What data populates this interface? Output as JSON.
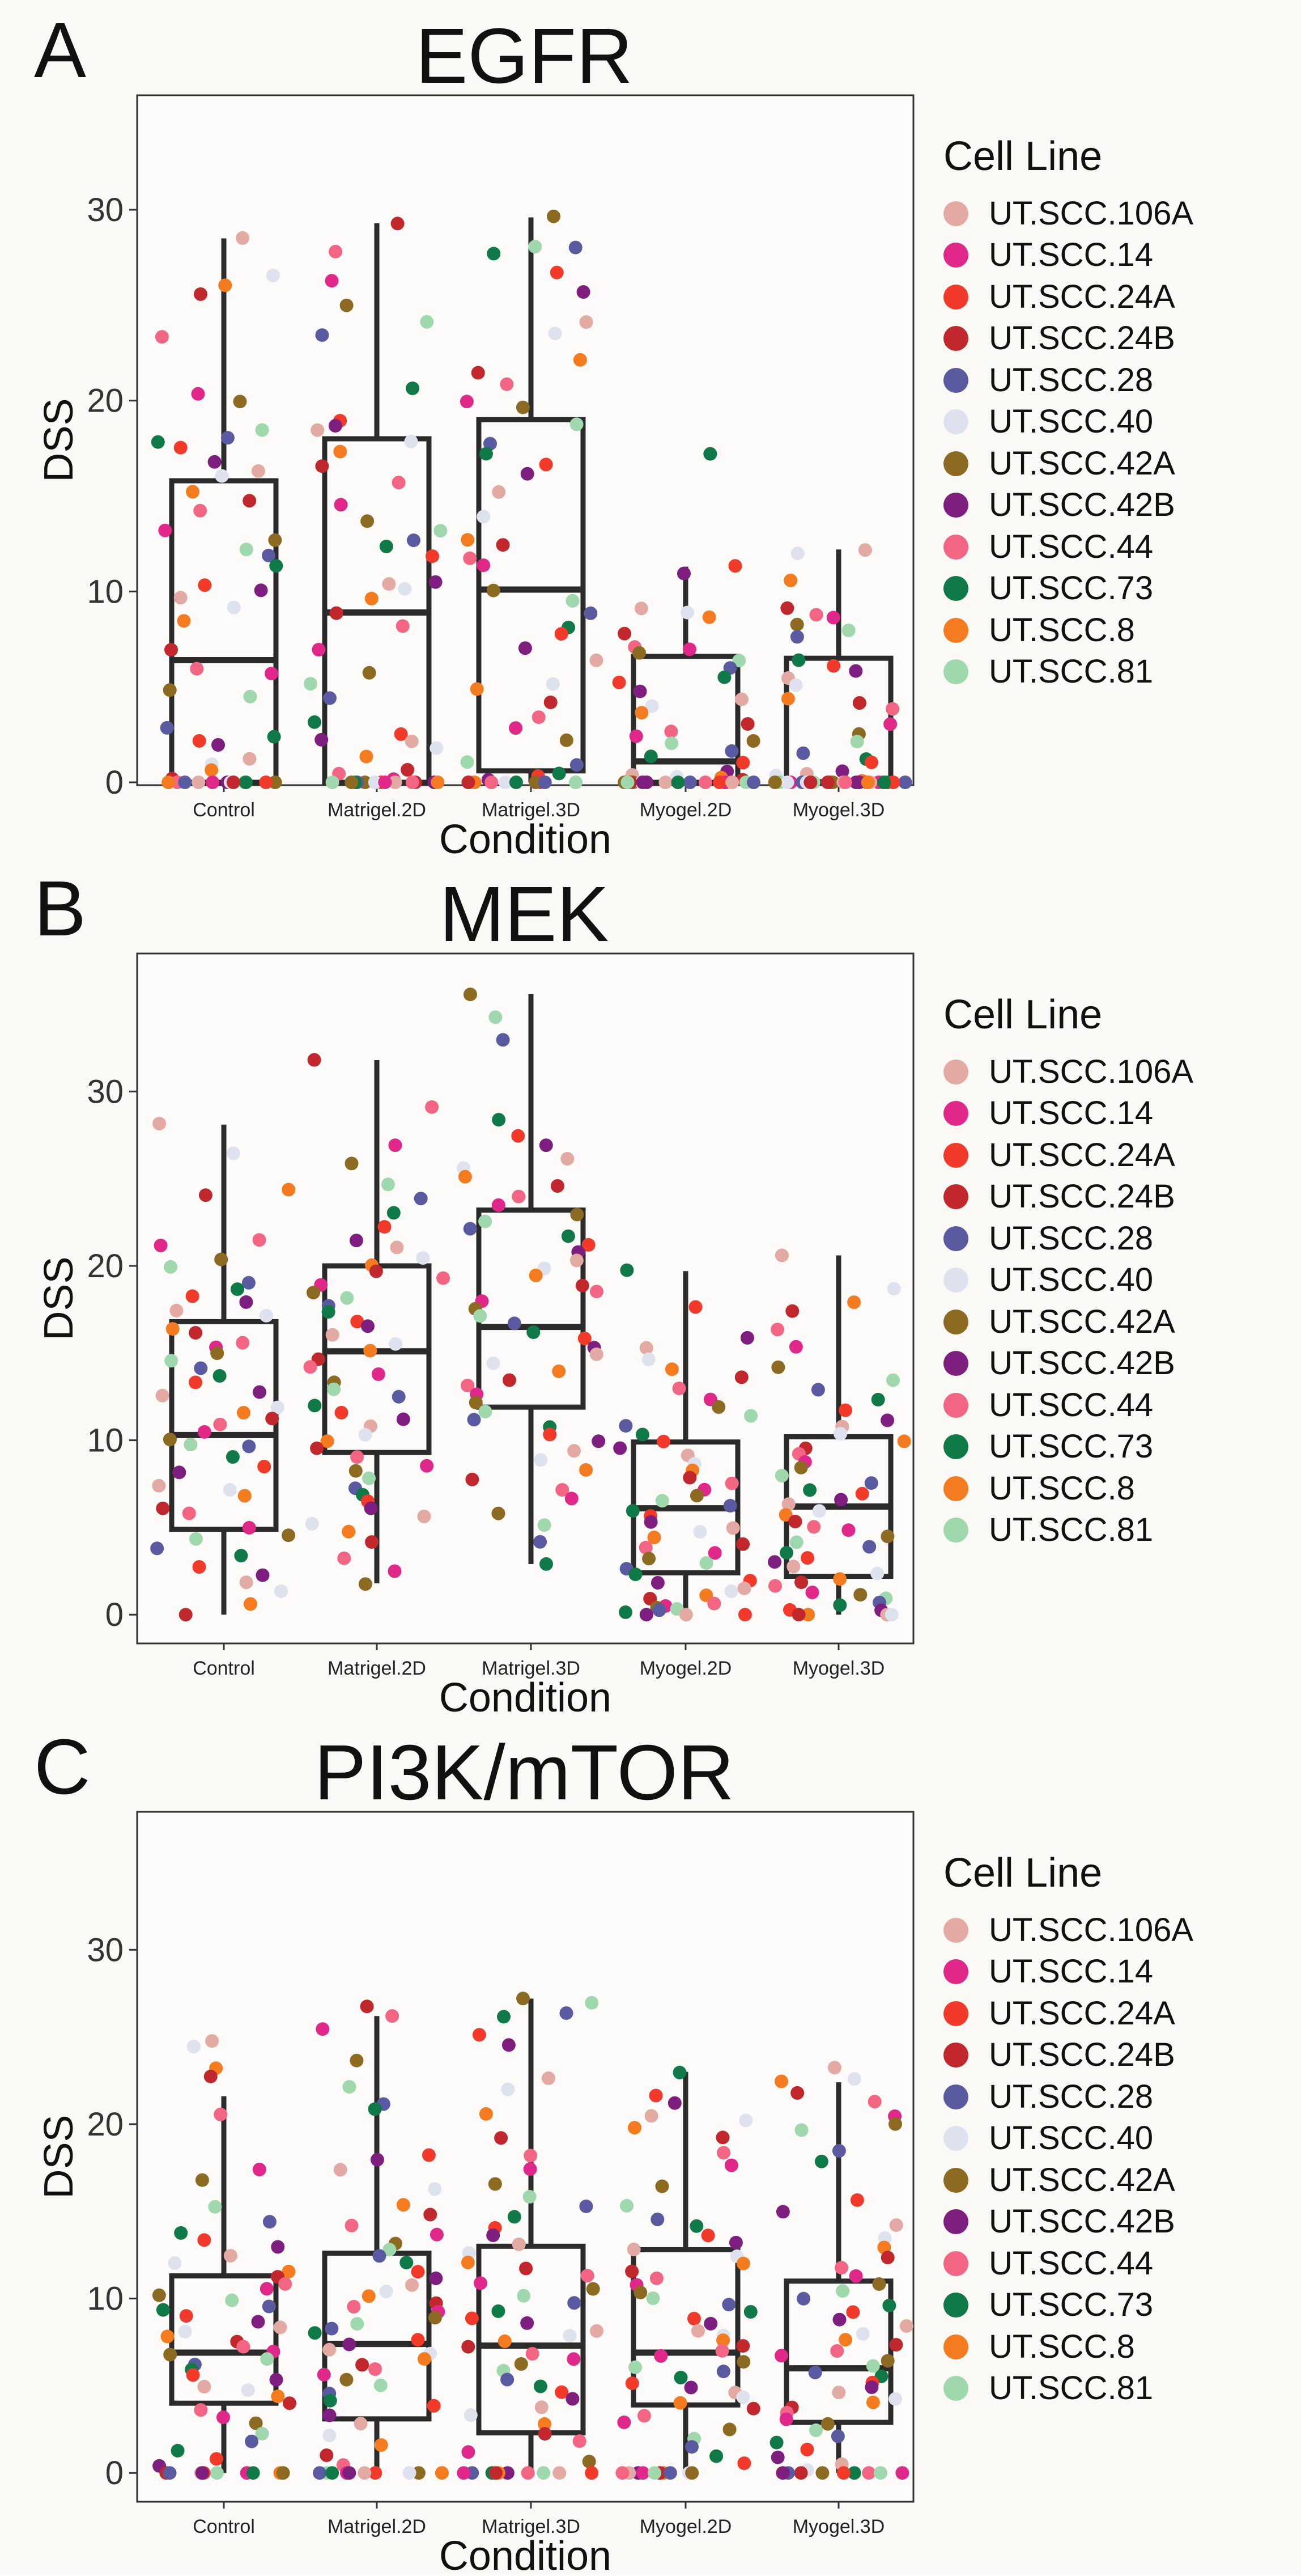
{
  "legend": {
    "title": "Cell Line",
    "items": [
      {
        "label": "UT.SCC.106A",
        "color": "#e3aaa4"
      },
      {
        "label": "UT.SCC.14",
        "color": "#e0288a"
      },
      {
        "label": "UT.SCC.24A",
        "color": "#f23a2a"
      },
      {
        "label": "UT.SCC.24B",
        "color": "#c0282d"
      },
      {
        "label": "UT.SCC.28",
        "color": "#5a5aa0"
      },
      {
        "label": "UT.SCC.40",
        "color": "#dde2ee"
      },
      {
        "label": "UT.SCC.42A",
        "color": "#8c6a22"
      },
      {
        "label": "UT.SCC.42B",
        "color": "#7e1e7e"
      },
      {
        "label": "UT.SCC.44",
        "color": "#f26684"
      },
      {
        "label": "UT.SCC.73",
        "color": "#0f7a47"
      },
      {
        "label": "UT.SCC.8",
        "color": "#f47b20"
      },
      {
        "label": "UT.SCC.81",
        "color": "#9fd8ac"
      }
    ]
  },
  "chart_data": [
    {
      "type": "box",
      "panel": "A",
      "title": "EGFR",
      "xlabel": "Condition",
      "ylabel": "DSS",
      "ylim": [
        0,
        36
      ],
      "yticks": [
        0,
        10,
        20,
        30
      ],
      "categories": [
        "Control",
        "Matrigel.2D",
        "Matrigel.3D",
        "Myogel.2D",
        "Myogel.3D"
      ],
      "boxes": [
        {
          "q1": 0,
          "median": 6.4,
          "q3": 15.8,
          "whisker_low": 0,
          "whisker_high": 28.5
        },
        {
          "q1": 0,
          "median": 8.9,
          "q3": 18.0,
          "whisker_low": 0,
          "whisker_high": 29.3
        },
        {
          "q1": 0.6,
          "median": 10.1,
          "q3": 19.0,
          "whisker_low": 0,
          "whisker_high": 29.6
        },
        {
          "q1": 0,
          "median": 1.1,
          "q3": 6.6,
          "whisker_low": 0,
          "whisker_high": 11.3
        },
        {
          "q1": 0,
          "median": 0,
          "q3": 6.5,
          "whisker_low": 0,
          "whisker_high": 12.2
        }
      ],
      "points": [
        [
          28.5,
          26.5,
          26.1,
          25.6,
          23.3,
          20.4,
          20.0,
          18.5,
          18.0,
          17.8,
          17.5,
          16.8,
          16.3,
          16.0,
          15.2,
          14.8,
          14.2,
          13.2,
          12.7,
          12.2,
          11.9,
          11.4,
          10.3,
          10.1,
          9.7,
          9.2,
          8.4,
          7.0,
          6.0,
          5.7,
          4.8,
          4.5,
          2.9,
          2.4,
          2.2,
          1.9,
          1.2,
          1.0,
          0.6,
          0.2,
          0,
          0,
          0,
          0,
          0,
          0,
          0,
          0,
          0,
          0,
          0,
          0
        ],
        [
          29.3,
          27.8,
          26.3,
          25.0,
          24.1,
          23.4,
          20.6,
          18.9,
          18.7,
          18.4,
          17.8,
          17.3,
          16.6,
          15.7,
          14.5,
          13.7,
          13.2,
          12.7,
          12.3,
          11.9,
          10.5,
          10.4,
          10.1,
          9.6,
          8.9,
          8.2,
          7.0,
          5.7,
          5.2,
          4.4,
          3.2,
          2.5,
          2.2,
          2.1,
          1.8,
          1.3,
          0.7,
          0.5,
          0.2,
          0,
          0,
          0,
          0,
          0,
          0,
          0,
          0,
          0,
          0,
          0,
          0,
          0
        ],
        [
          29.6,
          28.1,
          28.0,
          27.7,
          26.7,
          25.7,
          24.1,
          23.5,
          22.1,
          21.5,
          20.9,
          20.0,
          19.6,
          18.8,
          17.8,
          17.2,
          16.6,
          16.2,
          15.2,
          13.9,
          12.7,
          12.4,
          11.7,
          11.4,
          10.1,
          9.5,
          8.9,
          8.1,
          7.8,
          7.0,
          6.4,
          5.1,
          4.9,
          4.2,
          3.4,
          2.8,
          2.2,
          1.1,
          0.9,
          0.5,
          0.3,
          0.1,
          0,
          0,
          0,
          0,
          0,
          0,
          0,
          0,
          0,
          0
        ],
        [
          17.2,
          11.3,
          11.0,
          9.1,
          8.9,
          8.7,
          7.8,
          7.1,
          7.0,
          6.8,
          6.4,
          6.0,
          5.5,
          5.2,
          4.8,
          4.3,
          4.0,
          3.7,
          3.1,
          2.7,
          2.4,
          2.2,
          2.0,
          1.6,
          1.3,
          1.0,
          0.6,
          0.4,
          0.3,
          0.2,
          0.1,
          0,
          0,
          0,
          0,
          0,
          0,
          0,
          0,
          0,
          0,
          0,
          0,
          0,
          0,
          0,
          0,
          0,
          0,
          0,
          0,
          0
        ],
        [
          12.2,
          12.0,
          10.6,
          9.1,
          8.8,
          8.6,
          8.3,
          8.0,
          7.6,
          6.4,
          6.1,
          5.8,
          5.5,
          5.1,
          4.4,
          4.2,
          3.9,
          3.0,
          2.5,
          2.1,
          1.5,
          1.2,
          1.0,
          0.6,
          0.4,
          0.3,
          0.1,
          0,
          0,
          0,
          0,
          0,
          0,
          0,
          0,
          0,
          0,
          0,
          0,
          0,
          0,
          0,
          0,
          0,
          0,
          0,
          0,
          0,
          0,
          0,
          0,
          0
        ]
      ]
    },
    {
      "type": "box",
      "panel": "B",
      "title": "MEK",
      "xlabel": "Condition",
      "ylabel": "DSS",
      "ylim": [
        -1,
        37
      ],
      "yticks": [
        0,
        10,
        20,
        30
      ],
      "categories": [
        "Control",
        "Matrigel.2D",
        "Matrigel.3D",
        "Myogel.2D",
        "Myogel.3D"
      ],
      "boxes": [
        {
          "q1": 4.9,
          "median": 10.3,
          "q3": 16.8,
          "whisker_low": 0,
          "whisker_high": 28.1
        },
        {
          "q1": 9.3,
          "median": 15.1,
          "q3": 20.0,
          "whisker_low": 1.8,
          "whisker_high": 31.8
        },
        {
          "q1": 11.9,
          "median": 16.5,
          "q3": 23.2,
          "whisker_low": 2.9,
          "whisker_high": 35.6
        },
        {
          "q1": 2.4,
          "median": 6.1,
          "q3": 9.9,
          "whisker_low": 0,
          "whisker_high": 19.7
        },
        {
          "q1": 2.2,
          "median": 6.2,
          "q3": 10.2,
          "whisker_low": 0,
          "whisker_high": 20.6
        }
      ],
      "points": [
        [
          28.1,
          26.4,
          24.4,
          24.1,
          21.5,
          21.2,
          20.4,
          20.0,
          19.0,
          18.6,
          18.2,
          17.9,
          17.4,
          17.1,
          16.4,
          16.1,
          15.6,
          15.3,
          15.0,
          14.5,
          14.1,
          13.7,
          13.3,
          12.8,
          12.6,
          11.9,
          11.6,
          11.2,
          10.9,
          10.5,
          10.1,
          9.8,
          9.6,
          9.1,
          8.5,
          8.1,
          7.4,
          7.1,
          6.8,
          6.1,
          5.8,
          5.0,
          4.6,
          4.3,
          3.8,
          3.4,
          2.8,
          2.2,
          1.8,
          1.3,
          0.6,
          0
        ],
        [
          31.8,
          29.1,
          26.9,
          25.9,
          24.7,
          23.8,
          23.1,
          22.2,
          21.5,
          21.1,
          20.5,
          20.1,
          19.7,
          19.3,
          18.9,
          18.5,
          18.1,
          17.7,
          17.3,
          16.8,
          16.5,
          16.0,
          15.5,
          15.1,
          14.7,
          14.2,
          13.8,
          13.3,
          12.9,
          12.5,
          12.0,
          11.6,
          11.2,
          10.8,
          10.3,
          9.9,
          9.5,
          9.1,
          8.6,
          8.2,
          7.8,
          7.3,
          6.9,
          6.5,
          6.1,
          5.6,
          5.2,
          4.7,
          4.2,
          3.2,
          2.5,
          1.8
        ],
        [
          35.6,
          34.3,
          32.9,
          28.4,
          27.5,
          26.9,
          26.1,
          25.6,
          25.1,
          24.6,
          24.0,
          23.5,
          23.0,
          22.6,
          22.1,
          21.7,
          21.2,
          20.8,
          20.3,
          19.9,
          19.4,
          18.9,
          18.5,
          18.0,
          17.6,
          17.1,
          16.7,
          16.2,
          15.8,
          15.3,
          14.9,
          14.4,
          14.0,
          13.5,
          13.1,
          12.6,
          12.2,
          11.7,
          11.2,
          10.8,
          10.3,
          9.9,
          9.4,
          8.9,
          8.3,
          7.8,
          7.2,
          6.6,
          5.8,
          5.1,
          4.2,
          2.9
        ],
        [
          19.7,
          17.6,
          15.9,
          15.3,
          14.7,
          14.1,
          13.6,
          13.0,
          12.4,
          11.9,
          11.4,
          10.8,
          10.3,
          9.9,
          9.5,
          9.1,
          8.7,
          8.3,
          7.9,
          7.5,
          7.1,
          6.8,
          6.5,
          6.2,
          5.9,
          5.6,
          5.3,
          5.0,
          4.7,
          4.4,
          4.1,
          3.8,
          3.5,
          3.2,
          2.9,
          2.6,
          2.3,
          2.0,
          1.8,
          1.5,
          1.3,
          1.1,
          0.9,
          0.7,
          0.5,
          0.4,
          0.3,
          0.2,
          0.1,
          0,
          0,
          0
        ],
        [
          20.6,
          18.7,
          17.9,
          17.4,
          16.3,
          15.3,
          14.2,
          13.5,
          12.9,
          12.3,
          11.7,
          11.2,
          10.8,
          10.4,
          10.0,
          9.6,
          9.2,
          8.8,
          8.4,
          8.0,
          7.6,
          7.2,
          6.9,
          6.6,
          6.3,
          6.0,
          5.7,
          5.4,
          5.1,
          4.8,
          4.5,
          4.2,
          3.9,
          3.6,
          3.3,
          3.0,
          2.7,
          2.4,
          2.1,
          1.8,
          1.6,
          1.3,
          1.1,
          0.9,
          0.7,
          0.5,
          0.3,
          0.2,
          0,
          0,
          0,
          0
        ]
      ]
    },
    {
      "type": "box",
      "panel": "C",
      "title": "PI3K/mTOR",
      "xlabel": "Condition",
      "ylabel": "DSS",
      "ylim": [
        -1,
        37
      ],
      "yticks": [
        0,
        10,
        20,
        30
      ],
      "categories": [
        "Control",
        "Matrigel.2D",
        "Matrigel.3D",
        "Myogel.2D",
        "Myogel.3D"
      ],
      "boxes": [
        {
          "q1": 4.0,
          "median": 6.9,
          "q3": 11.3,
          "whisker_low": 0,
          "whisker_high": 21.6
        },
        {
          "q1": 3.1,
          "median": 7.4,
          "q3": 12.6,
          "whisker_low": 0,
          "whisker_high": 26.2
        },
        {
          "q1": 2.3,
          "median": 7.3,
          "q3": 13.0,
          "whisker_low": 0,
          "whisker_high": 27.2
        },
        {
          "q1": 3.9,
          "median": 6.9,
          "q3": 12.8,
          "whisker_low": 0,
          "whisker_high": 23.0
        },
        {
          "q1": 2.9,
          "median": 6.0,
          "q3": 11.0,
          "whisker_low": 0,
          "whisker_high": 22.4
        }
      ],
      "points": [
        [
          24.8,
          24.4,
          23.2,
          22.8,
          20.5,
          17.4,
          16.8,
          15.2,
          14.4,
          13.8,
          13.4,
          12.9,
          12.4,
          12.0,
          11.6,
          11.2,
          10.9,
          10.5,
          10.2,
          9.9,
          9.6,
          9.3,
          9.0,
          8.7,
          8.4,
          8.1,
          7.8,
          7.5,
          7.3,
          7.0,
          6.8,
          6.5,
          6.2,
          5.9,
          5.6,
          5.3,
          5.0,
          4.7,
          4.4,
          4.0,
          3.6,
          3.2,
          2.8,
          2.3,
          1.8,
          1.3,
          0.8,
          0.4,
          0,
          0,
          0,
          0,
          0,
          0,
          0,
          0,
          0,
          0,
          0,
          0
        ],
        [
          26.7,
          26.2,
          25.4,
          23.7,
          22.1,
          21.2,
          20.9,
          18.2,
          17.9,
          17.4,
          16.3,
          15.4,
          14.8,
          14.2,
          13.7,
          13.2,
          12.8,
          12.4,
          12.0,
          11.6,
          11.2,
          10.8,
          10.4,
          10.1,
          9.8,
          9.5,
          9.2,
          8.9,
          8.6,
          8.3,
          8.0,
          7.7,
          7.4,
          7.1,
          6.8,
          6.5,
          6.2,
          5.9,
          5.6,
          5.3,
          5.0,
          4.6,
          4.2,
          3.8,
          3.3,
          2.8,
          2.2,
          1.6,
          1.0,
          0.4,
          0,
          0,
          0,
          0,
          0,
          0,
          0,
          0,
          0,
          0
        ],
        [
          27.2,
          27.0,
          26.4,
          26.2,
          25.1,
          24.5,
          22.7,
          22.0,
          20.6,
          19.2,
          18.2,
          17.4,
          16.6,
          15.9,
          15.3,
          14.7,
          14.1,
          13.6,
          13.1,
          12.6,
          12.1,
          11.7,
          11.3,
          10.9,
          10.5,
          10.1,
          9.7,
          9.3,
          8.9,
          8.6,
          8.2,
          7.9,
          7.5,
          7.2,
          6.9,
          6.5,
          6.2,
          5.8,
          5.4,
          5.0,
          4.6,
          4.2,
          3.8,
          3.3,
          2.8,
          2.3,
          1.8,
          1.2,
          0.6,
          0,
          0,
          0,
          0,
          0,
          0,
          0,
          0,
          0,
          0,
          0
        ],
        [
          23.0,
          21.6,
          21.2,
          20.5,
          20.2,
          19.8,
          19.2,
          18.4,
          17.6,
          16.4,
          15.3,
          14.6,
          14.1,
          13.6,
          13.2,
          12.8,
          12.4,
          12.0,
          11.6,
          11.2,
          10.8,
          10.4,
          10.0,
          9.6,
          9.2,
          8.9,
          8.5,
          8.2,
          7.9,
          7.6,
          7.3,
          7.0,
          6.7,
          6.4,
          6.1,
          5.8,
          5.5,
          5.2,
          4.9,
          4.6,
          4.3,
          4.0,
          3.7,
          3.3,
          2.9,
          2.5,
          2.0,
          1.5,
          1.0,
          0.5,
          0,
          0,
          0,
          0,
          0,
          0,
          0,
          0,
          0,
          0
        ],
        [
          23.2,
          22.6,
          22.4,
          21.8,
          21.3,
          20.5,
          20.0,
          19.6,
          18.5,
          17.8,
          15.6,
          15.0,
          14.2,
          13.5,
          12.9,
          12.3,
          11.8,
          11.3,
          10.8,
          10.4,
          10.0,
          9.6,
          9.2,
          8.8,
          8.4,
          8.0,
          7.7,
          7.3,
          7.0,
          6.7,
          6.4,
          6.1,
          5.8,
          5.5,
          5.2,
          4.9,
          4.6,
          4.3,
          4.0,
          3.7,
          3.4,
          3.1,
          2.8,
          2.5,
          2.1,
          1.7,
          1.3,
          0.9,
          0.5,
          0.1,
          0,
          0,
          0,
          0,
          0,
          0,
          0,
          0,
          0,
          0
        ]
      ]
    }
  ]
}
